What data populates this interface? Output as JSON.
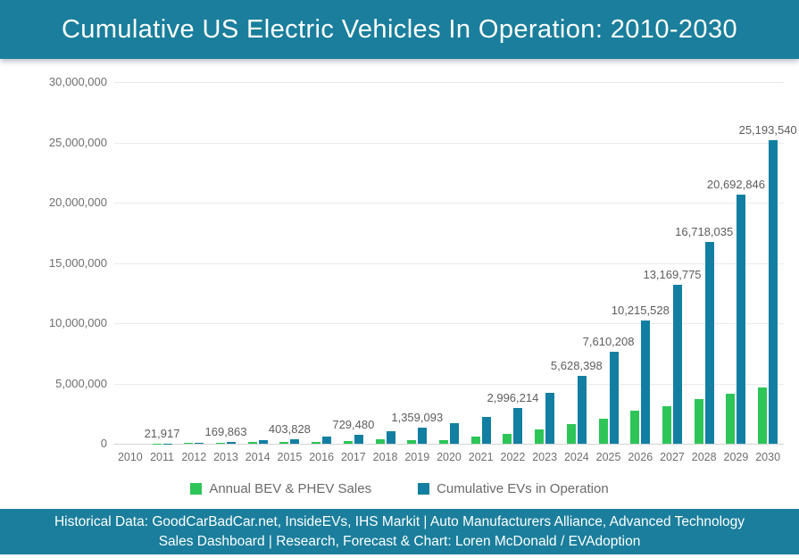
{
  "theme": {
    "header_bg": "#1A7E9C",
    "footer_bg": "#1A7E9C",
    "annual_green": "#2DC558",
    "cumulative_teal": "#127FA2"
  },
  "header": {
    "title": "Cumulative US Electric Vehicles In Operation: 2010-2030"
  },
  "legend": {
    "items": [
      {
        "label": "Annual BEV & PHEV Sales",
        "color": "#2DC558"
      },
      {
        "label": "Cumulative EVs in Operation",
        "color": "#127FA2"
      }
    ]
  },
  "footer": {
    "line1": "Historical Data: GoodCarBadCar.net, InsideEVs, IHS Markit | Auto Manufacturers Alliance, Advanced Technology",
    "line2": "Sales Dashboard | Research, Forecast & Chart: Loren McDonald / EVAdoption"
  },
  "chart_data": {
    "type": "bar",
    "title": "Cumulative US Electric Vehicles In Operation: 2010-2030",
    "xlabel": "",
    "ylabel": "",
    "ylim": [
      0,
      30000000
    ],
    "grid": true,
    "legend_position": "bottom",
    "y_ticks": [
      "30,000,000",
      "25,000,000",
      "20,000,000",
      "15,000,000",
      "10,000,000",
      "5,000,000",
      "0"
    ],
    "categories": [
      "2010",
      "2011",
      "2012",
      "2013",
      "2014",
      "2015",
      "2016",
      "2017",
      "2018",
      "2019",
      "2020",
      "2021",
      "2022",
      "2023",
      "2024",
      "2025",
      "2026",
      "2027",
      "2028",
      "2029",
      "2030"
    ],
    "series": [
      {
        "name": "Annual BEV & PHEV Sales",
        "color": "#2DC558",
        "values": [
          2000,
          18000,
          53000,
          96000,
          120000,
          115000,
          160000,
          200000,
          360000,
          330000,
          310000,
          610000,
          810000,
          1150000,
          1600000,
          2100000,
          2750000,
          3100000,
          3700000,
          4150000,
          4650000
        ]
      },
      {
        "name": "Cumulative EVs in Operation",
        "color": "#127FA2",
        "values": [
          2000,
          21917,
          75000,
          169863,
          290000,
          403828,
          570000,
          729480,
          1050000,
          1359093,
          1680000,
          2250000,
          2996214,
          4250000,
          5628398,
          7610208,
          10215528,
          13169775,
          16718035,
          20692846,
          25193540
        ]
      }
    ],
    "data_labels": [
      "",
      "21,917",
      "",
      "169,863",
      "",
      "403,828",
      "",
      "729,480",
      "",
      "1,359,093",
      "",
      "",
      "2,996,214",
      "",
      "5,628,398",
      "7,610,208",
      "10,215,528",
      "13,169,775",
      "16,718,035",
      "20,692,846",
      "25,193,540"
    ],
    "annotations_note": "value labels shown above cumulative bars for selected years only"
  }
}
